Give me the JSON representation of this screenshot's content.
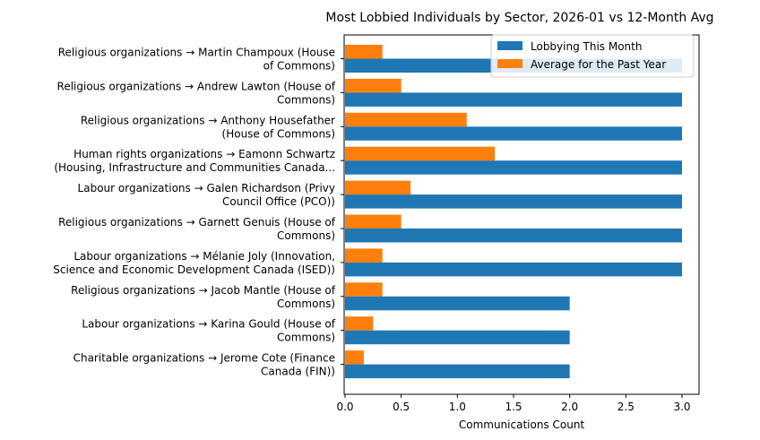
{
  "chart_data": {
    "type": "bar",
    "orientation": "horizontal",
    "title": "Most Lobbied Individuals by Sector, 2026-01 vs 12-Month Avg",
    "xlabel": "Communications Count",
    "ylabel": "",
    "xlim": [
      0,
      3.15
    ],
    "xticks": [
      0.0,
      0.5,
      1.0,
      1.5,
      2.0,
      2.5,
      3.0
    ],
    "xtick_labels": [
      "0.0",
      "0.5",
      "1.0",
      "1.5",
      "2.0",
      "2.5",
      "3.0"
    ],
    "grid": false,
    "legend_position": "top-right",
    "categories": [
      [
        "Religious organizations → Martin Champoux (House",
        "of Commons)"
      ],
      [
        "Religious organizations → Andrew Lawton (House of",
        "Commons)"
      ],
      [
        "Religious organizations → Anthony Housefather",
        "(House of Commons)"
      ],
      [
        "Human rights organizations → Eamonn Schwartz",
        "(Housing, Infrastructure and Communities Canada..."
      ],
      [
        "Labour organizations → Galen Richardson (Privy",
        "Council Office (PCO))"
      ],
      [
        "Religious organizations → Garnett Genuis (House of",
        "Commons)"
      ],
      [
        "Labour organizations → Mélanie Joly (Innovation,",
        "Science and Economic Development Canada (ISED))"
      ],
      [
        "Religious organizations → Jacob Mantle (House of",
        "Commons)"
      ],
      [
        "Labour organizations → Karina Gould (House of",
        "Commons)"
      ],
      [
        "Charitable organizations → Jerome Cote (Finance",
        "Canada (FIN))"
      ]
    ],
    "series": [
      {
        "name": "Lobbying This Month",
        "color": "#1f77b4",
        "values": [
          3,
          3,
          3,
          3,
          3,
          3,
          3,
          2,
          2,
          2
        ]
      },
      {
        "name": "Average for the Past Year",
        "color": "#ff7f0e",
        "values": [
          0.333,
          0.5,
          1.083,
          1.333,
          0.583,
          0.5,
          0.333,
          0.333,
          0.25,
          0.167
        ]
      }
    ]
  }
}
